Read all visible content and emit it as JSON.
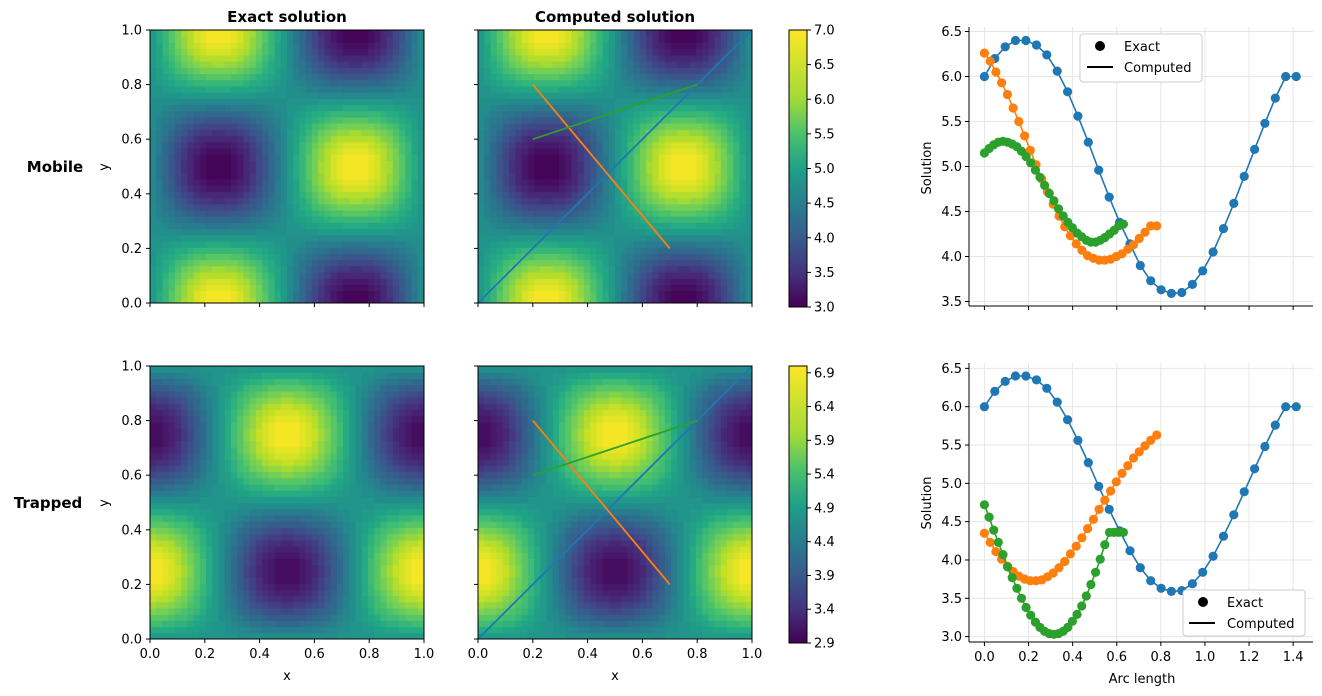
{
  "titles": {
    "exact": "Exact solution",
    "computed": "Computed solution"
  },
  "row_labels": {
    "mobile": "Mobile",
    "trapped": "Trapped"
  },
  "legend": {
    "exact": "Exact",
    "computed": "Computed"
  },
  "colors": {
    "blue": "#1f77b4",
    "orange": "#ff7f0e",
    "green": "#2ca02c"
  },
  "chart_data": [
    {
      "type": "heatmap",
      "panel": "mobile-exact",
      "title": "Exact solution",
      "ylabel": "y",
      "xlim": [
        0,
        1
      ],
      "ylim": [
        0,
        1
      ],
      "y_ticks": [
        "0.0",
        "0.2",
        "0.4",
        "0.6",
        "0.8",
        "1.0"
      ],
      "colormap": "viridis",
      "vmin": 3.0,
      "vmax": 7.0,
      "field": "5 + 2*sin(2*pi*x)*cos(2*pi*y)"
    },
    {
      "type": "heatmap",
      "panel": "mobile-computed",
      "title": "Computed solution",
      "xlim": [
        0,
        1
      ],
      "ylim": [
        0,
        1
      ],
      "colormap": "viridis",
      "vmin": 3.0,
      "vmax": 7.0,
      "field": "5 + 2*sin(2*pi*x)*cos(2*pi*y)",
      "colorbar_ticks": [
        "3.0",
        "3.5",
        "4.0",
        "4.5",
        "5.0",
        "5.5",
        "6.0",
        "6.5",
        "7.0"
      ],
      "lines": [
        {
          "color": "#1f77b4",
          "from": [
            0.0,
            0.0
          ],
          "to": [
            1.0,
            1.0
          ]
        },
        {
          "color": "#ff7f0e",
          "from": [
            0.2,
            0.8
          ],
          "to": [
            0.7,
            0.2
          ]
        },
        {
          "color": "#2ca02c",
          "from": [
            0.2,
            0.6
          ],
          "to": [
            0.8,
            0.8
          ]
        }
      ]
    },
    {
      "type": "line",
      "panel": "mobile-profile",
      "ylabel": "Solution",
      "ylim": [
        3.45,
        6.55
      ],
      "y_ticks": [
        "3.5",
        "4.0",
        "4.5",
        "5.0",
        "5.5",
        "6.0",
        "6.5"
      ],
      "grid": true,
      "legend_position": "top-center",
      "legend": [
        "Exact",
        "Computed"
      ],
      "series": [
        {
          "color": "#1f77b4",
          "x": [
            0.0,
            0.047,
            0.094,
            0.141,
            0.188,
            0.236,
            0.283,
            0.33,
            0.377,
            0.424,
            0.471,
            0.518,
            0.566,
            0.613,
            0.66,
            0.707,
            0.754,
            0.801,
            0.848,
            0.895,
            0.943,
            0.99,
            1.037,
            1.084,
            1.131,
            1.178,
            1.225,
            1.272,
            1.319,
            1.366,
            1.414
          ],
          "y": [
            6.0,
            6.2,
            6.33,
            6.4,
            6.4,
            6.35,
            6.24,
            6.06,
            5.83,
            5.56,
            5.27,
            4.96,
            4.66,
            4.38,
            4.14,
            3.9,
            3.73,
            3.63,
            3.59,
            3.6,
            3.69,
            3.84,
            4.05,
            4.31,
            4.59,
            4.89,
            5.19,
            5.48,
            5.76,
            6.0,
            6.0
          ]
        },
        {
          "color": "#ff7f0e",
          "x": [
            0.0,
            0.026,
            0.052,
            0.078,
            0.104,
            0.13,
            0.156,
            0.182,
            0.208,
            0.234,
            0.26,
            0.286,
            0.312,
            0.338,
            0.364,
            0.39,
            0.416,
            0.442,
            0.468,
            0.494,
            0.52,
            0.546,
            0.572,
            0.598,
            0.624,
            0.65,
            0.676,
            0.702,
            0.728,
            0.754,
            0.781
          ],
          "y": [
            6.26,
            6.17,
            6.05,
            5.93,
            5.8,
            5.65,
            5.5,
            5.34,
            5.18,
            5.02,
            4.86,
            4.72,
            4.58,
            4.45,
            4.33,
            4.23,
            4.14,
            4.07,
            4.01,
            3.98,
            3.96,
            3.96,
            3.97,
            4.0,
            4.03,
            4.08,
            4.13,
            4.2,
            4.27,
            4.34,
            4.34
          ]
        },
        {
          "color": "#2ca02c",
          "x": [
            0.0,
            0.021,
            0.042,
            0.063,
            0.084,
            0.105,
            0.126,
            0.147,
            0.168,
            0.189,
            0.21,
            0.231,
            0.252,
            0.273,
            0.294,
            0.315,
            0.336,
            0.357,
            0.378,
            0.399,
            0.42,
            0.441,
            0.462,
            0.483,
            0.504,
            0.525,
            0.546,
            0.567,
            0.588,
            0.609,
            0.63
          ],
          "y": [
            5.15,
            5.2,
            5.24,
            5.27,
            5.28,
            5.27,
            5.25,
            5.22,
            5.17,
            5.11,
            5.04,
            4.96,
            4.88,
            4.79,
            4.7,
            4.62,
            4.53,
            4.45,
            4.38,
            4.32,
            4.26,
            4.22,
            4.18,
            4.16,
            4.16,
            4.18,
            4.21,
            4.25,
            4.29,
            4.34,
            4.36
          ]
        }
      ]
    },
    {
      "type": "heatmap",
      "panel": "trapped-exact",
      "xlabel": "x",
      "ylabel": "y",
      "xlim": [
        0,
        1
      ],
      "ylim": [
        0,
        1
      ],
      "x_ticks": [
        "0.0",
        "0.2",
        "0.4",
        "0.6",
        "0.8",
        "1.0"
      ],
      "y_ticks": [
        "0.0",
        "0.2",
        "0.4",
        "0.6",
        "0.8",
        "1.0"
      ],
      "colormap": "viridis",
      "vmin": 2.9,
      "vmax": 7.0,
      "field": "5 + 2*cos(2*pi*x)*sin(2*pi*y)"
    },
    {
      "type": "heatmap",
      "panel": "trapped-computed",
      "xlabel": "x",
      "xlim": [
        0,
        1
      ],
      "ylim": [
        0,
        1
      ],
      "x_ticks": [
        "0.0",
        "0.2",
        "0.4",
        "0.6",
        "0.8",
        "1.0"
      ],
      "colormap": "viridis",
      "vmin": 2.9,
      "vmax": 7.0,
      "field": "5 + 2*cos(2*pi*x)*sin(2*pi*y)",
      "colorbar_ticks": [
        "2.9",
        "3.4",
        "3.9",
        "4.4",
        "4.9",
        "5.4",
        "5.9",
        "6.4",
        "6.9"
      ],
      "lines": [
        {
          "color": "#1f77b4",
          "from": [
            0.0,
            0.0
          ],
          "to": [
            1.0,
            1.0
          ]
        },
        {
          "color": "#ff7f0e",
          "from": [
            0.2,
            0.8
          ],
          "to": [
            0.7,
            0.2
          ]
        },
        {
          "color": "#2ca02c",
          "from": [
            0.2,
            0.6
          ],
          "to": [
            0.8,
            0.8
          ]
        }
      ]
    },
    {
      "type": "line",
      "panel": "trapped-profile",
      "xlabel": "Arc length",
      "ylabel": "Solution",
      "xlim": [
        -0.07,
        1.49
      ],
      "ylim": [
        2.93,
        6.57
      ],
      "x_ticks": [
        "0.0",
        "0.2",
        "0.4",
        "0.6",
        "0.8",
        "1.0",
        "1.2",
        "1.4"
      ],
      "y_ticks": [
        "3.0",
        "3.5",
        "4.0",
        "4.5",
        "5.0",
        "5.5",
        "6.0",
        "6.5"
      ],
      "grid": true,
      "legend_position": "lower-right",
      "legend": [
        "Exact",
        "Computed"
      ],
      "series": [
        {
          "color": "#1f77b4",
          "x": [
            0.0,
            0.047,
            0.094,
            0.141,
            0.188,
            0.236,
            0.283,
            0.33,
            0.377,
            0.424,
            0.471,
            0.518,
            0.566,
            0.613,
            0.66,
            0.707,
            0.754,
            0.801,
            0.848,
            0.895,
            0.943,
            0.99,
            1.037,
            1.084,
            1.131,
            1.178,
            1.225,
            1.272,
            1.319,
            1.366,
            1.414
          ],
          "y": [
            6.0,
            6.2,
            6.33,
            6.4,
            6.4,
            6.35,
            6.24,
            6.06,
            5.83,
            5.56,
            5.27,
            4.96,
            4.66,
            4.38,
            4.12,
            3.9,
            3.73,
            3.63,
            3.59,
            3.6,
            3.69,
            3.84,
            4.05,
            4.31,
            4.59,
            4.89,
            5.19,
            5.48,
            5.76,
            6.0,
            6.0
          ]
        },
        {
          "color": "#ff7f0e",
          "x": [
            0.0,
            0.026,
            0.052,
            0.078,
            0.104,
            0.13,
            0.156,
            0.182,
            0.208,
            0.234,
            0.26,
            0.286,
            0.312,
            0.338,
            0.364,
            0.39,
            0.416,
            0.442,
            0.468,
            0.494,
            0.52,
            0.546,
            0.572,
            0.598,
            0.624,
            0.65,
            0.676,
            0.702,
            0.728,
            0.754,
            0.781
          ],
          "y": [
            4.35,
            4.23,
            4.11,
            4.01,
            3.92,
            3.85,
            3.79,
            3.75,
            3.73,
            3.73,
            3.74,
            3.78,
            3.83,
            3.9,
            3.98,
            4.08,
            4.18,
            4.29,
            4.41,
            4.53,
            4.66,
            4.78,
            4.9,
            5.02,
            5.13,
            5.23,
            5.33,
            5.41,
            5.49,
            5.56,
            5.63
          ]
        },
        {
          "color": "#2ca02c",
          "x": [
            0.0,
            0.021,
            0.042,
            0.063,
            0.084,
            0.105,
            0.126,
            0.147,
            0.168,
            0.189,
            0.21,
            0.231,
            0.252,
            0.273,
            0.294,
            0.315,
            0.336,
            0.357,
            0.378,
            0.399,
            0.42,
            0.441,
            0.462,
            0.483,
            0.504,
            0.525,
            0.546,
            0.567,
            0.588,
            0.609,
            0.63
          ],
          "y": [
            4.72,
            4.56,
            4.39,
            4.23,
            4.07,
            3.91,
            3.77,
            3.63,
            3.5,
            3.38,
            3.28,
            3.19,
            3.12,
            3.07,
            3.04,
            3.03,
            3.04,
            3.07,
            3.12,
            3.2,
            3.29,
            3.4,
            3.53,
            3.68,
            3.84,
            4.01,
            4.2,
            4.36,
            4.36,
            4.36,
            4.36
          ]
        }
      ]
    }
  ]
}
